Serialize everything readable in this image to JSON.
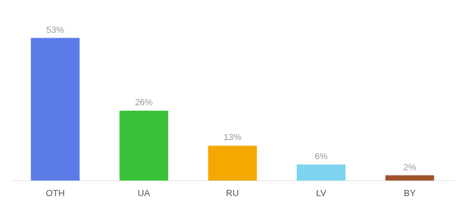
{
  "chart_data": {
    "type": "bar",
    "categories": [
      "OTH",
      "UA",
      "RU",
      "LV",
      "BY"
    ],
    "values": [
      53,
      26,
      13,
      6,
      2
    ],
    "colors": [
      "#5B7BE8",
      "#3CC13B",
      "#F5A800",
      "#7DD3F0",
      "#A0522D"
    ],
    "data_labels": true,
    "value_labels": [
      "53%",
      "26%",
      "13%",
      "6%",
      "2%"
    ],
    "ylim": [
      0,
      62
    ],
    "grid": false,
    "tick_labels": "x"
  }
}
